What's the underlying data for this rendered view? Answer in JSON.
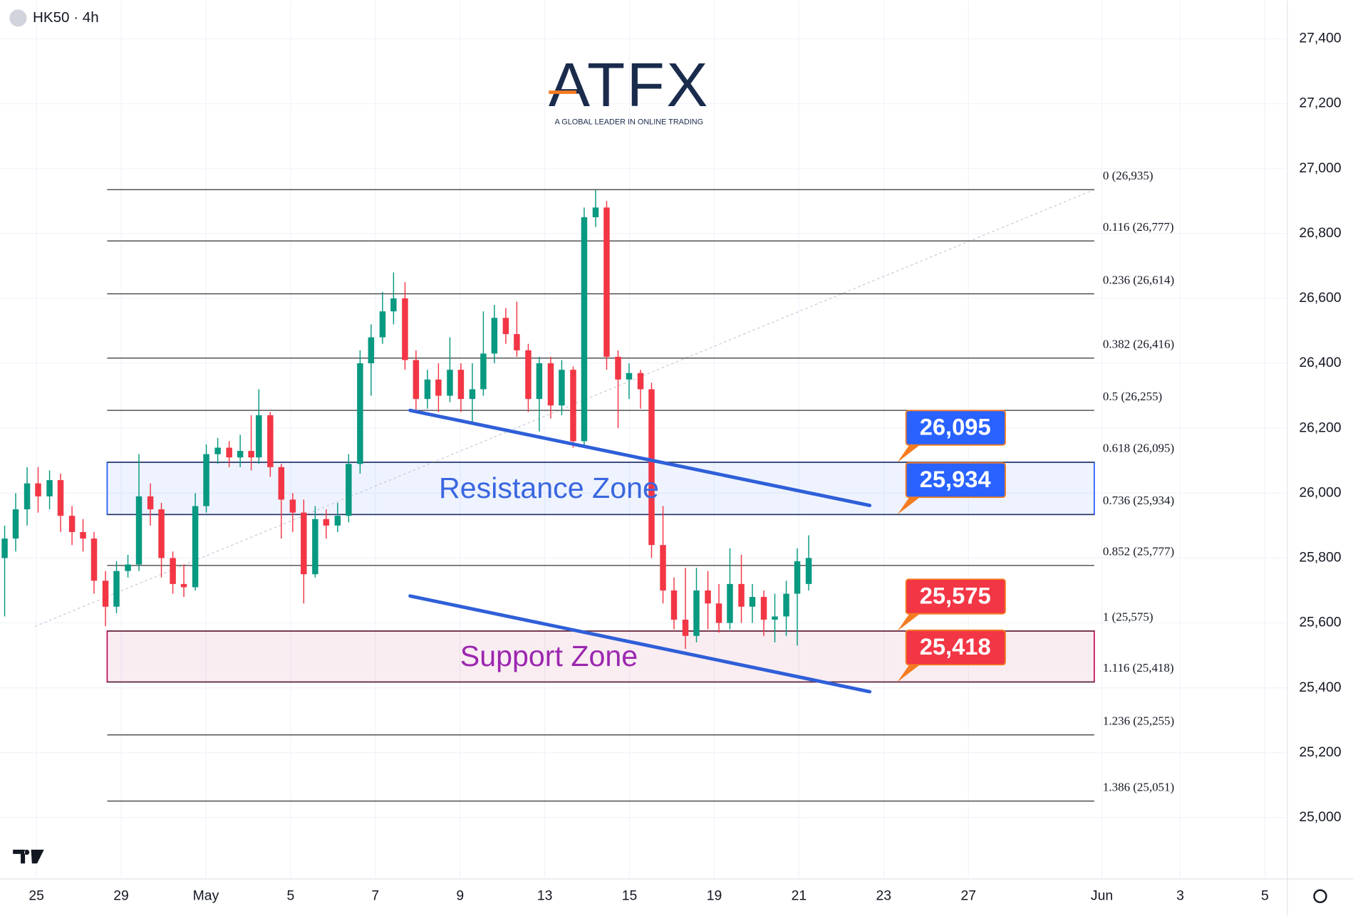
{
  "chart_data": {
    "type": "candlestick",
    "title": "HK50 · 4h",
    "logo": {
      "name": "ATFX",
      "tagline": "A GLOBAL LEADER IN ONLINE TRADING"
    },
    "up_color": "#089981",
    "down_color": "#f23645",
    "grid": true,
    "xlim": [
      -0.86,
      29.53
    ],
    "ylim": [
      24811,
      27517
    ],
    "xticks": [
      {
        "value": 0,
        "label": "25"
      },
      {
        "value": 2,
        "label": "29"
      },
      {
        "value": 4,
        "label": "May"
      },
      {
        "value": 6,
        "label": "5"
      },
      {
        "value": 8,
        "label": "7"
      },
      {
        "value": 10,
        "label": "9"
      },
      {
        "value": 12,
        "label": "13"
      },
      {
        "value": 14,
        "label": "15"
      },
      {
        "value": 16,
        "label": "19"
      },
      {
        "value": 18,
        "label": "21"
      },
      {
        "value": 20,
        "label": "23"
      },
      {
        "value": 22,
        "label": "27"
      },
      {
        "value": 25.15,
        "label": "Jun"
      },
      {
        "value": 27,
        "label": "3"
      },
      {
        "value": 29,
        "label": "5"
      }
    ],
    "yticks": [
      {
        "value": 25000,
        "label": "25,000"
      },
      {
        "value": 25200,
        "label": "25,200"
      },
      {
        "value": 25400,
        "label": "25,400"
      },
      {
        "value": 25600,
        "label": "25,600"
      },
      {
        "value": 25800,
        "label": "25,800"
      },
      {
        "value": 26000,
        "label": "26,000"
      },
      {
        "value": 26200,
        "label": "26,200"
      },
      {
        "value": 26400,
        "label": "26,400"
      },
      {
        "value": 26600,
        "label": "26,600"
      },
      {
        "value": 26800,
        "label": "26,800"
      },
      {
        "value": 27000,
        "label": "27,000"
      },
      {
        "value": 27200,
        "label": "27,200"
      },
      {
        "value": 27400,
        "label": "27,400"
      }
    ],
    "x": [
      -0.75,
      -0.49,
      -0.22,
      0.04,
      0.31,
      0.57,
      0.84,
      1.1,
      1.36,
      1.63,
      1.89,
      2.16,
      2.42,
      2.69,
      2.95,
      3.22,
      3.48,
      3.75,
      4.01,
      4.28,
      4.55,
      4.81,
      5.07,
      5.25,
      5.52,
      5.78,
      6.05,
      6.31,
      6.58,
      6.84,
      7.11,
      7.37,
      7.64,
      7.9,
      8.17,
      8.43,
      8.7,
      8.96,
      9.23,
      9.49,
      9.76,
      10.02,
      10.29,
      10.55,
      10.81,
      11.08,
      11.34,
      11.61,
      11.87,
      12.14,
      12.4,
      12.67,
      12.93,
      13.2,
      13.46,
      13.73,
      13.99,
      14.26,
      14.52,
      14.79,
      15.05,
      15.32,
      15.58,
      15.85,
      16.11,
      16.37,
      16.64,
      16.9,
      17.17,
      17.43,
      17.7,
      17.96,
      18.23
    ],
    "open": [
      25800,
      25860,
      25950,
      26030,
      25990,
      26040,
      25930,
      25880,
      25860,
      25730,
      25650,
      25760,
      25780,
      25990,
      25950,
      25800,
      25720,
      25710,
      25960,
      26120,
      26140,
      26110,
      26130,
      26110,
      26240,
      26080,
      25980,
      25940,
      25750,
      25920,
      25900,
      25930,
      26090,
      26400,
      26480,
      26560,
      26600,
      26410,
      26290,
      26350,
      26300,
      26380,
      26290,
      26320,
      26430,
      26540,
      26490,
      26440,
      26290,
      26400,
      26270,
      26380,
      26160,
      26850,
      26880,
      26420,
      26350,
      26370,
      26320,
      25840,
      25700,
      25610,
      25560,
      25700,
      25660,
      25600,
      25720,
      25650,
      25680,
      25610,
      25620,
      25690,
      25720
    ],
    "high": [
      25900,
      26000,
      26080,
      26080,
      26070,
      26060,
      25960,
      25920,
      25880,
      25760,
      25790,
      25810,
      26120,
      26030,
      25970,
      25820,
      25780,
      26000,
      26150,
      26170,
      26160,
      26180,
      26240,
      26320,
      26250,
      26090,
      26000,
      25980,
      25960,
      25950,
      25970,
      26120,
      26440,
      26520,
      26620,
      26680,
      26650,
      26440,
      26380,
      26400,
      26480,
      26400,
      26400,
      26560,
      26580,
      26570,
      26590,
      26460,
      26420,
      26420,
      26410,
      26390,
      26880,
      26935,
      26900,
      26440,
      26400,
      26380,
      26340,
      25960,
      25740,
      25770,
      25770,
      25760,
      25720,
      25830,
      25810,
      25720,
      25700,
      25690,
      25730,
      25830,
      25870
    ],
    "low": [
      25620,
      25820,
      25900,
      25940,
      25950,
      25880,
      25840,
      25820,
      25690,
      25590,
      25630,
      25740,
      25760,
      25900,
      25740,
      25690,
      25680,
      25700,
      25940,
      26090,
      26080,
      26080,
      26070,
      26090,
      26050,
      25860,
      25880,
      25660,
      25740,
      25860,
      25880,
      25910,
      26060,
      26300,
      26460,
      26520,
      26380,
      26250,
      26260,
      26250,
      26280,
      26250,
      26220,
      26300,
      26400,
      26460,
      26420,
      26250,
      26190,
      26230,
      26240,
      26140,
      26140,
      26820,
      26380,
      26200,
      26290,
      26260,
      25800,
      25660,
      25580,
      25520,
      25540,
      25580,
      25570,
      25580,
      25600,
      25600,
      25560,
      25540,
      25560,
      25530,
      25700
    ],
    "close": [
      25860,
      25950,
      26030,
      25990,
      26040,
      25930,
      25880,
      25860,
      25730,
      25650,
      25760,
      25780,
      25990,
      25950,
      25800,
      25720,
      25710,
      25960,
      26120,
      26140,
      26110,
      26130,
      26110,
      26240,
      26080,
      25980,
      25940,
      25750,
      25920,
      25900,
      25930,
      26090,
      26400,
      26480,
      26560,
      26600,
      26410,
      26290,
      26350,
      26300,
      26380,
      26290,
      26320,
      26430,
      26540,
      26490,
      26440,
      26290,
      26400,
      26270,
      26380,
      26160,
      26850,
      26880,
      26420,
      26350,
      26370,
      26320,
      25840,
      25700,
      25610,
      25560,
      25700,
      25660,
      25600,
      25720,
      25650,
      25680,
      25610,
      25620,
      25690,
      25790,
      25800
    ],
    "fib_x": [
      1.67,
      24.97
    ],
    "fib_trend": {
      "x": [
        -0.04,
        24.97
      ],
      "values": [
        25589,
        26935
      ]
    },
    "fib_levels": [
      {
        "label": "0 (26,935)",
        "value": 26935
      },
      {
        "label": "0.116 (26,777)",
        "value": 26777
      },
      {
        "label": "0.236 (26,614)",
        "value": 26614
      },
      {
        "label": "0.382 (26,416)",
        "value": 26416
      },
      {
        "label": "0.5 (26,255)",
        "value": 26255
      },
      {
        "label": "0.618 (26,095)",
        "value": 26095
      },
      {
        "label": "0.736 (25,934)",
        "value": 25934
      },
      {
        "label": "0.852 (25,777)",
        "value": 25777
      },
      {
        "label": "1 (25,575)",
        "value": 25575
      },
      {
        "label": "1.116 (25,418)",
        "value": 25418
      },
      {
        "label": "1.236 (25,255)",
        "value": 25255
      },
      {
        "label": "1.386 (25,051)",
        "value": 25051
      }
    ],
    "zones": [
      {
        "label": "Resistance Zone",
        "values": [
          25934,
          26095
        ],
        "color": "#2962ff"
      },
      {
        "label": "Support Zone",
        "values": [
          25418,
          25575
        ],
        "color": "#c2185b"
      }
    ],
    "trendlines": [
      {
        "x": [
          8.82,
          19.67
        ],
        "values": [
          26255,
          25962
        ],
        "color": "#2f5fd8"
      },
      {
        "x": [
          8.82,
          19.67
        ],
        "values": [
          25683,
          25388
        ],
        "color": "#2f5fd8"
      }
    ],
    "price_tags": {
      "values": [
        26095,
        25934,
        25575,
        25418
      ],
      "value_labels": [
        "26,095",
        "25,934",
        "25,575",
        "25,418"
      ],
      "colors": [
        "#2962ff",
        "#2962ff",
        "#f23645",
        "#f23645"
      ]
    }
  }
}
